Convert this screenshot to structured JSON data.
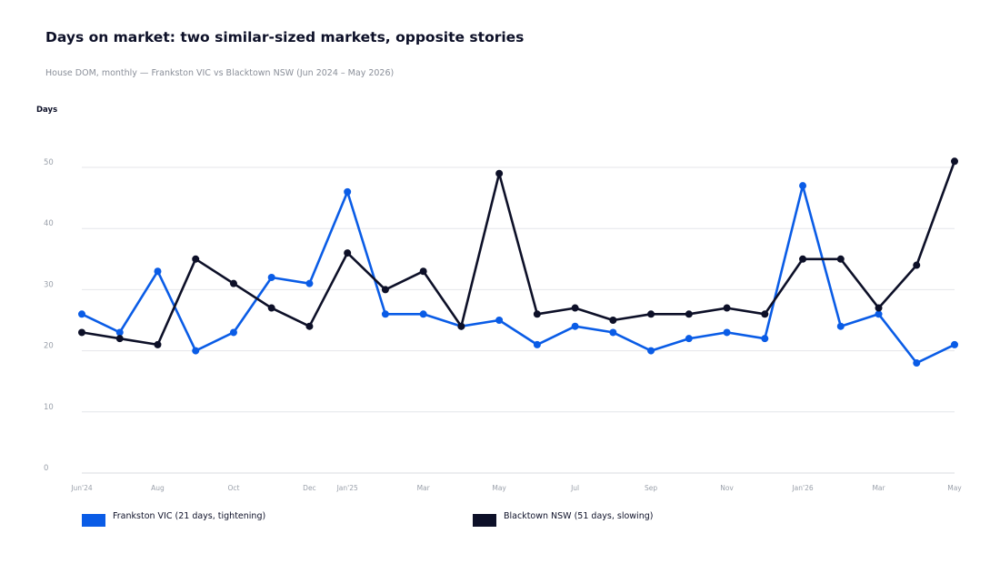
{
  "header": {
    "title": "Days on market: two similar-sized markets, opposite stories",
    "subtitle": "House DOM, monthly — Frankston VIC vs Blacktown NSW (Jun 2024 – May 2026)"
  },
  "chart_data": {
    "type": "line",
    "title": "Days on market: two similar-sized markets, opposite stories",
    "subtitle": "House DOM, monthly — Frankston VIC vs Blacktown NSW (Jun 2024 – May 2026)",
    "xlabel": "",
    "ylabel": "Days",
    "ylim": [
      0,
      50
    ],
    "y_ticks": [
      0,
      10,
      20,
      30,
      40,
      50
    ],
    "grid": true,
    "x": [
      "Jun'24",
      "Jul",
      "Aug",
      "Sep",
      "Oct",
      "Nov",
      "Dec",
      "Jan'25",
      "Feb",
      "Mar",
      "Apr",
      "May",
      "Jun",
      "Jul",
      "Aug",
      "Sep",
      "Oct",
      "Nov",
      "Dec",
      "Jan'26",
      "Feb",
      "Mar",
      "Apr",
      "May"
    ],
    "x_tick_labels": [
      {
        "index": 0,
        "label": "Jun'24"
      },
      {
        "index": 2,
        "label": "Aug"
      },
      {
        "index": 4,
        "label": "Oct"
      },
      {
        "index": 6,
        "label": "Dec"
      },
      {
        "index": 7,
        "label": "Jan'25"
      },
      {
        "index": 9,
        "label": "Mar"
      },
      {
        "index": 11,
        "label": "May"
      },
      {
        "index": 13,
        "label": "Jul"
      },
      {
        "index": 15,
        "label": "Sep"
      },
      {
        "index": 17,
        "label": "Nov"
      },
      {
        "index": 19,
        "label": "Jan'26"
      },
      {
        "index": 21,
        "label": "Mar"
      },
      {
        "index": 23,
        "label": "May"
      }
    ],
    "series": [
      {
        "name": "Frankston VIC (21 days, tightening)",
        "color": "#0a5ce6",
        "values": [
          26,
          23,
          33,
          20,
          23,
          32,
          31,
          46,
          26,
          26,
          24,
          25,
          21,
          24,
          23,
          20,
          22,
          23,
          22,
          47,
          24,
          26,
          18,
          21
        ]
      },
      {
        "name": "Blacktown NSW (51 days, slowing)",
        "color": "#0d1028",
        "values": [
          23,
          22,
          21,
          35,
          31,
          27,
          24,
          36,
          30,
          33,
          24,
          49,
          26,
          27,
          25,
          26,
          26,
          27,
          26,
          35,
          35,
          27,
          34,
          51
        ]
      }
    ],
    "legend_position": "bottom"
  }
}
